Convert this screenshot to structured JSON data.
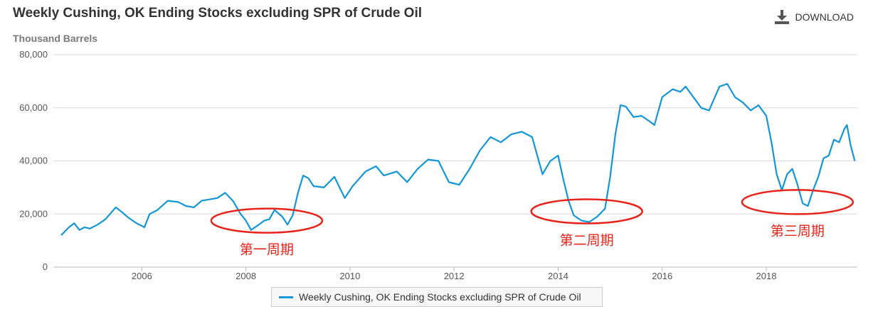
{
  "header": {
    "title": "Weekly Cushing, OK Ending Stocks excluding SPR of Crude Oil",
    "subtitle": "Thousand Barrels",
    "download_label": "DOWNLOAD",
    "download_icon": "download-icon"
  },
  "colors": {
    "series": "#1296d8",
    "annotation": "#e8231a",
    "grid": "#d8d8d8"
  },
  "chart_data": {
    "type": "line",
    "title": "Weekly Cushing, OK Ending Stocks excluding SPR of Crude Oil",
    "ylabel": "Thousand Barrels",
    "xlabel": "",
    "ylim": [
      0,
      80000
    ],
    "xlim": [
      2004.3,
      2019.75
    ],
    "yticks": [
      0,
      20000,
      40000,
      60000,
      80000
    ],
    "ytick_labels": [
      "0",
      "20,000",
      "40,000",
      "60,000",
      "80,000"
    ],
    "xticks": [
      2006,
      2008,
      2010,
      2012,
      2014,
      2016,
      2018
    ],
    "xtick_labels": [
      "2006",
      "2008",
      "2010",
      "2012",
      "2014",
      "2016",
      "2018"
    ],
    "grid": true,
    "legend_position": "bottom-center",
    "series": [
      {
        "name": "Weekly Cushing, OK Ending Stocks excluding SPR of Crude Oil",
        "x": [
          2004.45,
          2004.6,
          2004.7,
          2004.8,
          2004.9,
          2005.0,
          2005.15,
          2005.3,
          2005.5,
          2005.6,
          2005.75,
          2005.9,
          2006.05,
          2006.15,
          2006.3,
          2006.5,
          2006.7,
          2006.85,
          2007.0,
          2007.15,
          2007.3,
          2007.45,
          2007.6,
          2007.75,
          2007.9,
          2008.0,
          2008.1,
          2008.25,
          2008.35,
          2008.45,
          2008.55,
          2008.7,
          2008.8,
          2008.9,
          2009.0,
          2009.1,
          2009.2,
          2009.3,
          2009.5,
          2009.7,
          2009.9,
          2010.05,
          2010.3,
          2010.5,
          2010.65,
          2010.9,
          2011.1,
          2011.3,
          2011.5,
          2011.7,
          2011.9,
          2012.1,
          2012.3,
          2012.5,
          2012.7,
          2012.9,
          2013.1,
          2013.3,
          2013.5,
          2013.7,
          2013.85,
          2014.0,
          2014.1,
          2014.2,
          2014.3,
          2014.45,
          2014.6,
          2014.75,
          2014.9,
          2015.0,
          2015.1,
          2015.2,
          2015.3,
          2015.45,
          2015.6,
          2015.75,
          2015.85,
          2016.0,
          2016.2,
          2016.35,
          2016.45,
          2016.6,
          2016.75,
          2016.9,
          2017.1,
          2017.25,
          2017.4,
          2017.55,
          2017.7,
          2017.85,
          2018.0,
          2018.1,
          2018.2,
          2018.3,
          2018.4,
          2018.5,
          2018.6,
          2018.7,
          2018.8,
          2018.9,
          2019.0,
          2019.1,
          2019.2,
          2019.3,
          2019.4,
          2019.5,
          2019.55,
          2019.62,
          2019.7
        ],
        "values": [
          12000,
          15000,
          16500,
          14000,
          15000,
          14500,
          16000,
          18000,
          22500,
          21000,
          18500,
          16500,
          15000,
          20000,
          21500,
          25000,
          24500,
          23000,
          22500,
          25000,
          25500,
          26000,
          28000,
          25000,
          20000,
          17500,
          14000,
          16000,
          17500,
          18000,
          21500,
          19000,
          16000,
          19500,
          28000,
          34500,
          33500,
          30500,
          30000,
          34000,
          26000,
          30500,
          36000,
          38000,
          34500,
          36000,
          32000,
          37000,
          40500,
          40000,
          32000,
          31000,
          37000,
          44000,
          49000,
          47000,
          50000,
          51000,
          49000,
          35000,
          40000,
          42000,
          33000,
          25000,
          19500,
          17500,
          17000,
          19000,
          22000,
          34000,
          50000,
          61000,
          60500,
          56500,
          57000,
          55000,
          53500,
          64000,
          67000,
          66000,
          68000,
          64000,
          60000,
          59000,
          68000,
          69000,
          64000,
          62000,
          59000,
          61000,
          57000,
          47000,
          35000,
          29000,
          35000,
          37000,
          31000,
          24000,
          23000,
          29000,
          34000,
          41000,
          42000,
          48000,
          47000,
          52000,
          53500,
          46000,
          40000
        ]
      }
    ],
    "annotations": [
      {
        "text": "第一周期",
        "center_x": 2008.4,
        "center_y": 17500
      },
      {
        "text": "第二周期",
        "center_x": 2014.55,
        "center_y": 21000
      },
      {
        "text": "第三周期",
        "center_x": 2018.6,
        "center_y": 24500
      }
    ]
  },
  "legend": {
    "label": "Weekly Cushing, OK Ending Stocks excluding SPR of Crude Oil"
  }
}
